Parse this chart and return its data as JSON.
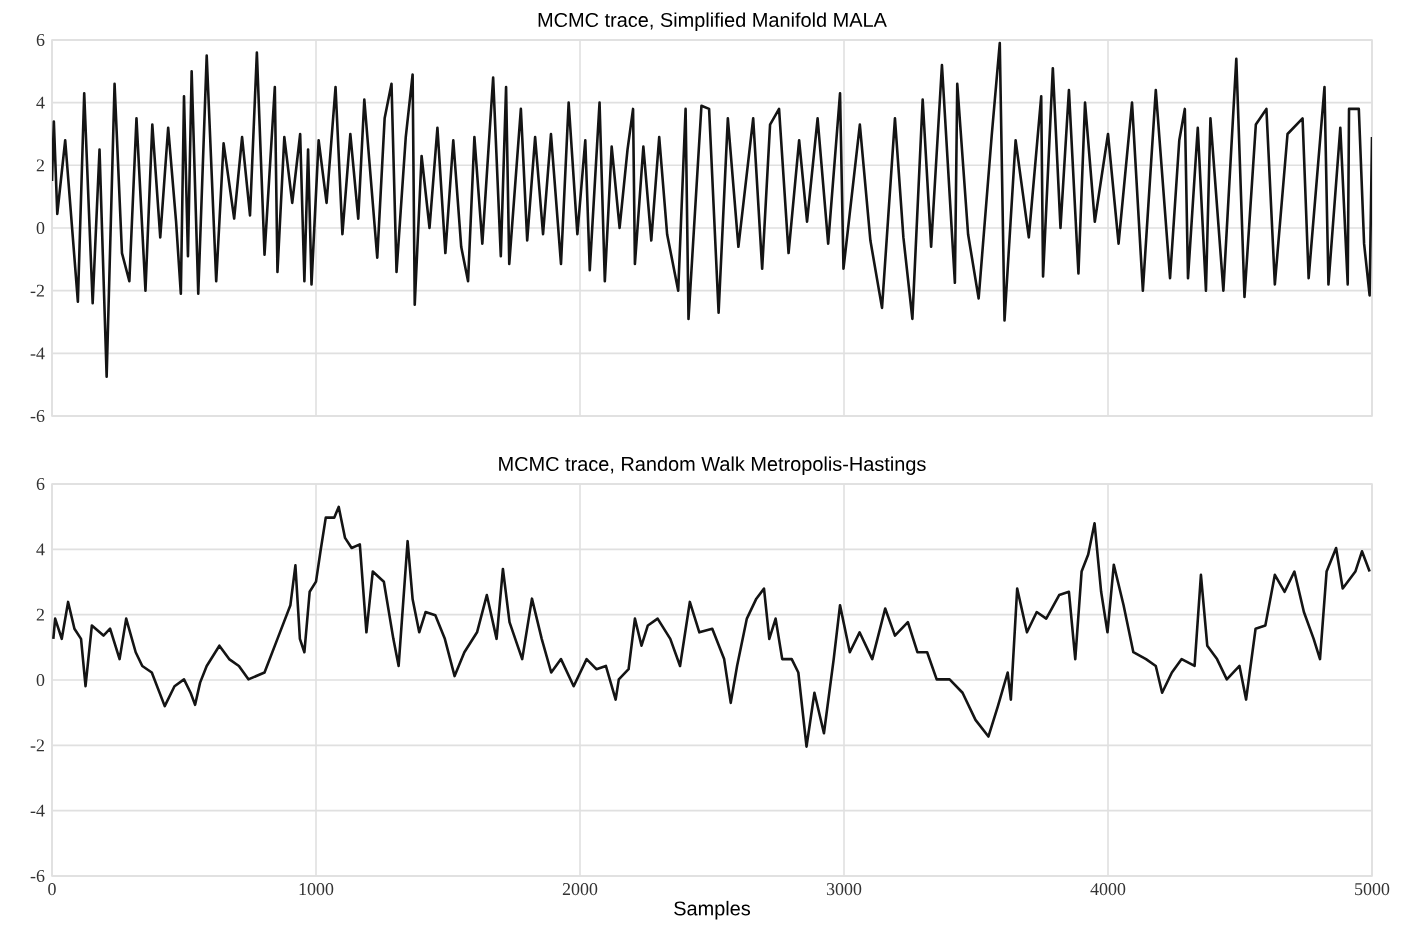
{
  "chart_data": [
    {
      "type": "line",
      "title": "MCMC trace, Simplified Manifold MALA",
      "color": "#141414",
      "xlim": [
        0,
        5000
      ],
      "ylim": [
        -6,
        6
      ],
      "xticks": [
        0,
        1000,
        2000,
        3000,
        4000,
        5000
      ],
      "yticks": [
        -6,
        -4,
        -2,
        0,
        2,
        4,
        6
      ],
      "grid": true,
      "tick_labels": "y",
      "x": [
        0,
        7,
        20,
        50,
        98,
        122,
        140,
        154,
        180,
        207,
        237,
        265,
        293,
        320,
        354,
        380,
        410,
        440,
        470,
        488,
        500,
        515,
        529,
        554,
        586,
        622,
        650,
        690,
        720,
        750,
        776,
        805,
        844,
        854,
        880,
        910,
        940,
        956,
        970,
        983,
        1010,
        1040,
        1074,
        1100,
        1130,
        1160,
        1183,
        1232,
        1260,
        1286,
        1305,
        1340,
        1366,
        1374,
        1400,
        1430,
        1460,
        1490,
        1520,
        1550,
        1576,
        1600,
        1630,
        1671,
        1700,
        1720,
        1732,
        1776,
        1800,
        1830,
        1860,
        1890,
        1928,
        1957,
        1990,
        2020,
        2037,
        2074,
        2094,
        2120,
        2150,
        2180,
        2201,
        2208,
        2240,
        2270,
        2300,
        2330,
        2372,
        2400,
        2411,
        2460,
        2489,
        2525,
        2560,
        2600,
        2656,
        2690,
        2720,
        2754,
        2790,
        2830,
        2860,
        2900,
        2940,
        2985,
        2998,
        3060,
        3100,
        3144,
        3193,
        3225,
        3259,
        3298,
        3330,
        3371,
        3420,
        3429,
        3470,
        3510,
        3560,
        3590,
        3608,
        3650,
        3700,
        3747,
        3754,
        3791,
        3820,
        3852,
        3888,
        3913,
        3950,
        4000,
        4040,
        4091,
        4132,
        4181,
        4235,
        4270,
        4291,
        4303,
        4340,
        4371,
        4388,
        4437,
        4486,
        4517,
        4560,
        4600,
        4632,
        4680,
        4737,
        4760,
        4820,
        4835,
        4880,
        4908,
        4913,
        4950,
        4970,
        4991,
        5000
      ],
      "values": [
        1.5,
        3.4,
        0.45,
        2.8,
        -2.35,
        4.3,
        0.5,
        -2.4,
        2.5,
        -4.75,
        4.6,
        -0.8,
        -1.7,
        3.5,
        -2.0,
        3.3,
        -0.3,
        3.2,
        0.2,
        -2.1,
        4.2,
        -0.9,
        5.0,
        -2.1,
        5.5,
        -1.7,
        2.7,
        0.3,
        2.9,
        0.4,
        5.6,
        -0.85,
        4.5,
        -1.4,
        2.9,
        0.8,
        3.0,
        -1.7,
        2.5,
        -1.8,
        2.8,
        0.8,
        4.5,
        -0.2,
        3.0,
        0.3,
        4.1,
        -0.95,
        3.5,
        4.6,
        -1.4,
        2.9,
        4.9,
        -2.45,
        2.3,
        0.0,
        3.2,
        -0.8,
        2.8,
        -0.6,
        -1.7,
        2.9,
        -0.5,
        4.8,
        -0.9,
        4.5,
        -1.15,
        3.8,
        -0.4,
        2.9,
        -0.2,
        3.0,
        -1.15,
        4.0,
        -0.2,
        2.8,
        -1.35,
        4.0,
        -1.7,
        2.6,
        0.0,
        2.5,
        3.8,
        -1.15,
        2.6,
        -0.4,
        2.9,
        -0.2,
        -2.0,
        3.8,
        -2.9,
        3.9,
        3.8,
        -2.7,
        3.5,
        -0.6,
        3.5,
        -1.3,
        3.3,
        3.8,
        -0.8,
        2.8,
        0.2,
        3.5,
        -0.5,
        4.3,
        -1.3,
        3.3,
        -0.4,
        -2.55,
        3.5,
        -0.3,
        -2.9,
        4.1,
        -0.6,
        5.2,
        -1.75,
        4.6,
        -0.2,
        -2.25,
        3.0,
        5.9,
        -2.95,
        2.8,
        -0.3,
        4.2,
        -1.55,
        5.1,
        0.0,
        4.4,
        -1.45,
        4.0,
        0.2,
        3.0,
        -0.5,
        4.0,
        -2.0,
        4.4,
        -1.6,
        2.8,
        3.8,
        -1.6,
        3.2,
        -2.0,
        3.5,
        -2.0,
        5.4,
        -2.2,
        3.3,
        3.8,
        -1.8,
        3.0,
        3.5,
        -1.6,
        4.5,
        -1.8,
        3.2,
        -1.8,
        3.8,
        3.8,
        -0.5,
        -2.15,
        2.9
      ]
    },
    {
      "type": "line",
      "title": "MCMC trace, Random Walk Metropolis-Hastings",
      "xlabel": "Samples",
      "color": "#141414",
      "xlim": [
        0,
        5000
      ],
      "ylim": [
        -6,
        6
      ],
      "xticks": [
        0,
        1000,
        2000,
        3000,
        4000,
        5000
      ],
      "yticks": [
        -6,
        -4,
        -2,
        0,
        2,
        4,
        6
      ],
      "grid": true,
      "x": [
        5,
        12,
        37,
        61,
        85,
        110,
        127,
        151,
        195,
        220,
        256,
        281,
        317,
        342,
        378,
        427,
        464,
        500,
        525,
        542,
        561,
        586,
        634,
        671,
        708,
        744,
        805,
        854,
        903,
        922,
        939,
        956,
        976,
        1000,
        1017,
        1037,
        1069,
        1086,
        1110,
        1135,
        1166,
        1191,
        1215,
        1257,
        1293,
        1313,
        1347,
        1366,
        1391,
        1415,
        1452,
        1488,
        1525,
        1562,
        1610,
        1647,
        1684,
        1708,
        1733,
        1781,
        1818,
        1855,
        1891,
        1928,
        1976,
        2025,
        2062,
        2098,
        2135,
        2147,
        2184,
        2208,
        2233,
        2257,
        2294,
        2342,
        2379,
        2416,
        2452,
        2501,
        2546,
        2571,
        2595,
        2632,
        2668,
        2697,
        2717,
        2741,
        2766,
        2802,
        2827,
        2858,
        2888,
        2924,
        2961,
        2985,
        3022,
        3059,
        3107,
        3156,
        3193,
        3242,
        3278,
        3315,
        3351,
        3400,
        3449,
        3498,
        3547,
        3583,
        3620,
        3632,
        3656,
        3693,
        3730,
        3766,
        3815,
        3852,
        3876,
        3900,
        3925,
        3949,
        3974,
        3998,
        4022,
        4059,
        4096,
        4144,
        4181,
        4205,
        4242,
        4279,
        4328,
        4352,
        4376,
        4413,
        4450,
        4498,
        4523,
        4559,
        4596,
        4632,
        4669,
        4706,
        4742,
        4779,
        4803,
        4828,
        4864,
        4889,
        4937,
        4962,
        4991
      ],
      "values": [
        1.26,
        1.88,
        1.26,
        2.39,
        1.57,
        1.26,
        -0.19,
        1.67,
        1.36,
        1.57,
        0.64,
        1.88,
        0.85,
        0.43,
        0.23,
        -0.8,
        -0.19,
        0.02,
        -0.39,
        -0.76,
        -0.08,
        0.43,
        1.05,
        0.64,
        0.43,
        0.02,
        0.23,
        1.26,
        2.29,
        3.51,
        1.26,
        0.85,
        2.7,
        3.01,
        3.94,
        4.97,
        4.97,
        5.3,
        4.35,
        4.04,
        4.15,
        1.46,
        3.32,
        3.01,
        1.26,
        0.43,
        4.25,
        2.47,
        1.46,
        2.08,
        1.98,
        1.26,
        0.12,
        0.85,
        1.46,
        2.6,
        1.26,
        3.4,
        1.77,
        0.64,
        2.49,
        1.26,
        0.23,
        0.64,
        -0.19,
        0.64,
        0.33,
        0.43,
        -0.6,
        0.02,
        0.33,
        1.88,
        1.05,
        1.67,
        1.88,
        1.26,
        0.43,
        2.39,
        1.46,
        1.57,
        0.64,
        -0.7,
        0.43,
        1.88,
        2.49,
        2.8,
        1.26,
        1.88,
        0.64,
        0.64,
        0.23,
        -2.04,
        -0.39,
        -1.63,
        0.64,
        2.29,
        0.85,
        1.46,
        0.64,
        2.19,
        1.36,
        1.77,
        0.85,
        0.85,
        0.02,
        0.02,
        -0.39,
        -1.22,
        -1.73,
        -0.8,
        0.23,
        -0.6,
        2.8,
        1.46,
        2.08,
        1.88,
        2.6,
        2.7,
        0.64,
        3.32,
        3.84,
        4.8,
        2.7,
        1.46,
        3.53,
        2.29,
        0.85,
        0.64,
        0.43,
        -0.39,
        0.23,
        0.64,
        0.43,
        3.22,
        1.05,
        0.64,
        0.02,
        0.43,
        -0.6,
        1.57,
        1.67,
        3.22,
        2.7,
        3.32,
        2.08,
        1.26,
        0.64,
        3.32,
        4.04,
        2.8,
        3.32,
        3.94,
        3.32
      ]
    }
  ]
}
